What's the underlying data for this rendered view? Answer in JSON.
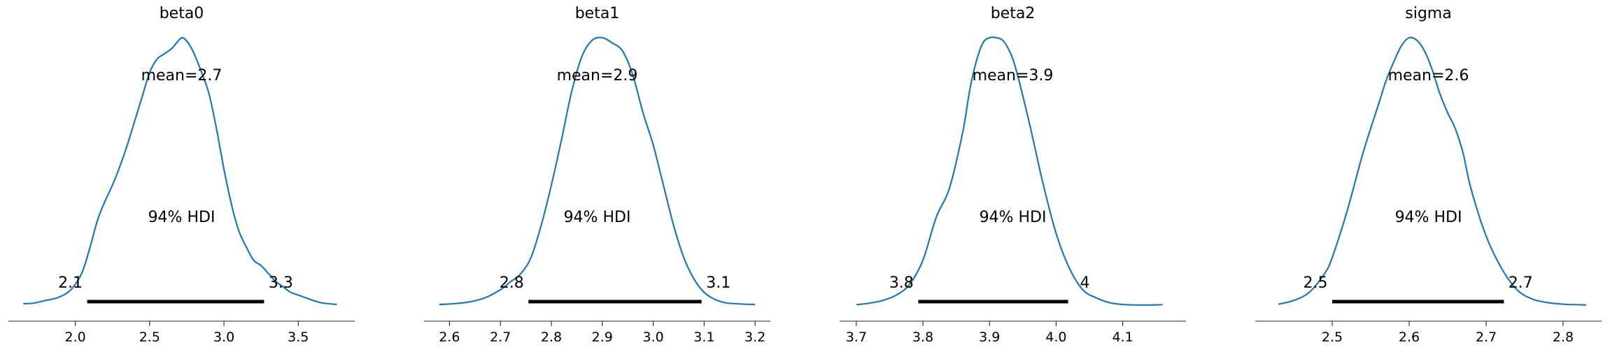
{
  "figure": {
    "line_color": "#1f77b4",
    "hdi_color": "#000000",
    "axis_color": "#262626"
  },
  "chart_data": [
    {
      "type": "line",
      "title": "beta0",
      "mean_label": "mean=2.7",
      "hdi_label": "94% HDI",
      "hdi": {
        "low": 2.08,
        "high": 3.27,
        "low_label": "2.1",
        "high_label": "3.3"
      },
      "xlim": [
        1.55,
        3.88
      ],
      "xticks": [
        2.0,
        2.5,
        3.0,
        3.5
      ],
      "xtick_labels": [
        "2.0",
        "2.5",
        "3.0",
        "3.5"
      ],
      "density": {
        "x": [
          1.65,
          1.72,
          1.8,
          1.88,
          1.95,
          2.0,
          2.05,
          2.1,
          2.15,
          2.2,
          2.25,
          2.3,
          2.35,
          2.4,
          2.45,
          2.5,
          2.55,
          2.6,
          2.65,
          2.68,
          2.72,
          2.76,
          2.8,
          2.85,
          2.9,
          2.95,
          3.0,
          3.05,
          3.1,
          3.15,
          3.2,
          3.25,
          3.3,
          3.35,
          3.4,
          3.45,
          3.5,
          3.55,
          3.6,
          3.65,
          3.7,
          3.76
        ],
        "y": [
          0.008,
          0.01,
          0.02,
          0.03,
          0.05,
          0.08,
          0.13,
          0.22,
          0.32,
          0.39,
          0.45,
          0.52,
          0.6,
          0.69,
          0.78,
          0.87,
          0.92,
          0.94,
          0.96,
          0.98,
          1.0,
          0.98,
          0.94,
          0.87,
          0.79,
          0.66,
          0.51,
          0.38,
          0.28,
          0.22,
          0.17,
          0.15,
          0.12,
          0.09,
          0.07,
          0.05,
          0.04,
          0.03,
          0.02,
          0.012,
          0.008,
          0.005
        ]
      }
    },
    {
      "type": "line",
      "title": "beta1",
      "mean_label": "mean=2.9",
      "hdi_label": "94% HDI",
      "hdi": {
        "low": 2.755,
        "high": 3.095,
        "low_label": "2.8",
        "high_label": "3.1"
      },
      "xlim": [
        2.55,
        3.23
      ],
      "xticks": [
        2.6,
        2.7,
        2.8,
        2.9,
        3.0,
        3.1,
        3.2
      ],
      "xtick_labels": [
        "2.6",
        "2.7",
        "2.8",
        "2.9",
        "3.0",
        "3.1",
        "3.2"
      ],
      "density": {
        "x": [
          2.58,
          2.61,
          2.64,
          2.67,
          2.7,
          2.72,
          2.74,
          2.76,
          2.78,
          2.8,
          2.82,
          2.84,
          2.86,
          2.88,
          2.9,
          2.92,
          2.94,
          2.96,
          2.98,
          3.0,
          3.02,
          3.04,
          3.06,
          3.08,
          3.1,
          3.12,
          3.14,
          3.16,
          3.18,
          3.2
        ],
        "y": [
          0.005,
          0.008,
          0.015,
          0.03,
          0.06,
          0.09,
          0.12,
          0.18,
          0.3,
          0.45,
          0.62,
          0.8,
          0.93,
          0.99,
          1.0,
          0.98,
          0.95,
          0.86,
          0.72,
          0.6,
          0.45,
          0.3,
          0.18,
          0.1,
          0.05,
          0.025,
          0.012,
          0.008,
          0.006,
          0.005
        ]
      }
    },
    {
      "type": "line",
      "title": "beta2",
      "mean_label": "mean=3.9",
      "hdi_label": "94% HDI",
      "hdi": {
        "low": 3.793,
        "high": 4.018,
        "low_label": "3.8",
        "high_label": "4"
      },
      "xlim": [
        3.675,
        4.195
      ],
      "xticks": [
        3.7,
        3.8,
        3.9,
        4.0,
        4.1
      ],
      "xtick_labels": [
        "3.7",
        "3.8",
        "3.9",
        "4.0",
        "4.1"
      ],
      "density": {
        "x": [
          3.7,
          3.72,
          3.74,
          3.76,
          3.78,
          3.8,
          3.82,
          3.84,
          3.86,
          3.87,
          3.88,
          3.89,
          3.9,
          3.91,
          3.92,
          3.93,
          3.94,
          3.96,
          3.98,
          4.0,
          4.02,
          4.04,
          4.06,
          4.08,
          4.1,
          4.12,
          4.14,
          4.16
        ],
        "y": [
          0.004,
          0.01,
          0.02,
          0.04,
          0.08,
          0.17,
          0.33,
          0.44,
          0.65,
          0.8,
          0.91,
          0.98,
          1.0,
          1.0,
          0.99,
          0.95,
          0.88,
          0.68,
          0.46,
          0.27,
          0.14,
          0.06,
          0.03,
          0.012,
          0.005,
          0.003,
          0.003,
          0.004
        ]
      }
    },
    {
      "type": "line",
      "title": "sigma",
      "mean_label": "mean=2.6",
      "hdi_label": "94% HDI",
      "hdi": {
        "low": 2.5,
        "high": 2.723,
        "low_label": "2.5",
        "high_label": "2.7"
      },
      "xlim": [
        2.4,
        2.85
      ],
      "xticks": [
        2.5,
        2.6,
        2.7,
        2.8
      ],
      "xtick_labels": [
        "2.5",
        "2.6",
        "2.7",
        "2.8"
      ],
      "density": {
        "x": [
          2.43,
          2.45,
          2.47,
          2.49,
          2.5,
          2.52,
          2.54,
          2.56,
          2.57,
          2.58,
          2.59,
          2.6,
          2.61,
          2.62,
          2.63,
          2.64,
          2.65,
          2.66,
          2.67,
          2.68,
          2.7,
          2.72,
          2.74,
          2.76,
          2.78,
          2.8,
          2.82,
          2.83
        ],
        "y": [
          0.006,
          0.02,
          0.05,
          0.12,
          0.18,
          0.36,
          0.57,
          0.75,
          0.84,
          0.91,
          0.97,
          1.0,
          0.99,
          0.95,
          0.88,
          0.79,
          0.72,
          0.66,
          0.57,
          0.44,
          0.26,
          0.14,
          0.06,
          0.025,
          0.012,
          0.006,
          0.004,
          0.003
        ]
      }
    }
  ]
}
